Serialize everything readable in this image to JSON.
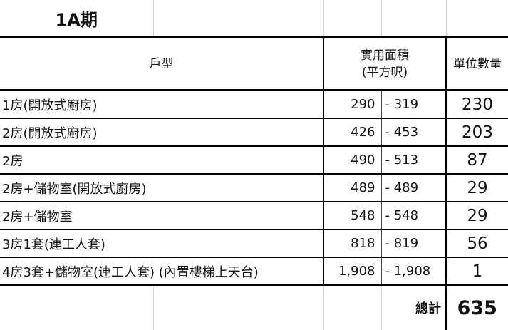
{
  "title": "1A期",
  "headers": {
    "unit_type": "戶型",
    "area_line1": "實用面積",
    "area_line2": "(平方呎)",
    "count": "單位數量"
  },
  "rows": [
    {
      "type": "1房(開放式廚房)",
      "area_min": "290",
      "area_max": "- 319",
      "count": "230"
    },
    {
      "type": "2房(開放式廚房)",
      "area_min": "426",
      "area_max": "- 453",
      "count": "203"
    },
    {
      "type": "2房",
      "area_min": "490",
      "area_max": "- 513",
      "count": "87"
    },
    {
      "type": "2房+儲物室(開放式廚房)",
      "area_min": "489",
      "area_max": "- 489",
      "count": "29"
    },
    {
      "type": "2房+儲物室",
      "area_min": "548",
      "area_max": "- 548",
      "count": "29"
    },
    {
      "type": "3房1套(連工人套)",
      "area_min": "818",
      "area_max": "- 819",
      "count": "56"
    },
    {
      "type": "4房3套+儲物室(連工人套) (內置樓梯上天台)",
      "area_min": "1,908",
      "area_max": "- 1,908",
      "count": "1"
    }
  ],
  "total": {
    "label": "總計",
    "value": "635"
  }
}
